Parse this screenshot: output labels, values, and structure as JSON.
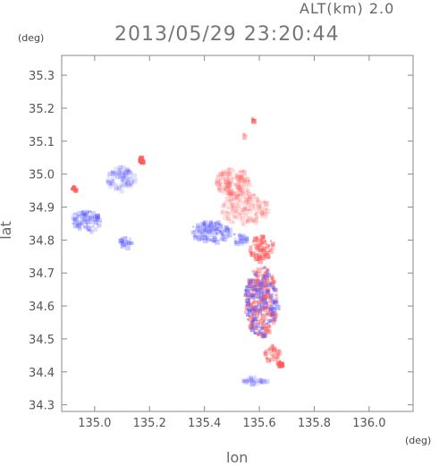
{
  "header": {
    "altitude_label": "ALT(km)  2.0",
    "timestamp": "2013/05/29  23:20:44"
  },
  "units": {
    "y_unit": "(deg)",
    "x_unit": "(deg)"
  },
  "axes": {
    "x_label": "lon",
    "y_label": "lat",
    "x_ticks": [
      "135.0",
      "135.2",
      "135.4",
      "135.6",
      "135.8",
      "136.0"
    ],
    "y_ticks": [
      "35.3",
      "35.2",
      "35.1",
      "35.0",
      "34.9",
      "34.8",
      "34.7",
      "34.6",
      "34.5",
      "34.4",
      "34.3"
    ]
  },
  "chart_data": {
    "type": "heatmap",
    "xlabel": "lon",
    "ylabel": "lat",
    "xlim": [
      134.88,
      136.16
    ],
    "ylim": [
      34.28,
      35.36
    ],
    "colors": {
      "positive": "#ff5a5a",
      "negative": "#5a5aff",
      "frame": "#888888"
    },
    "grid": false
  }
}
